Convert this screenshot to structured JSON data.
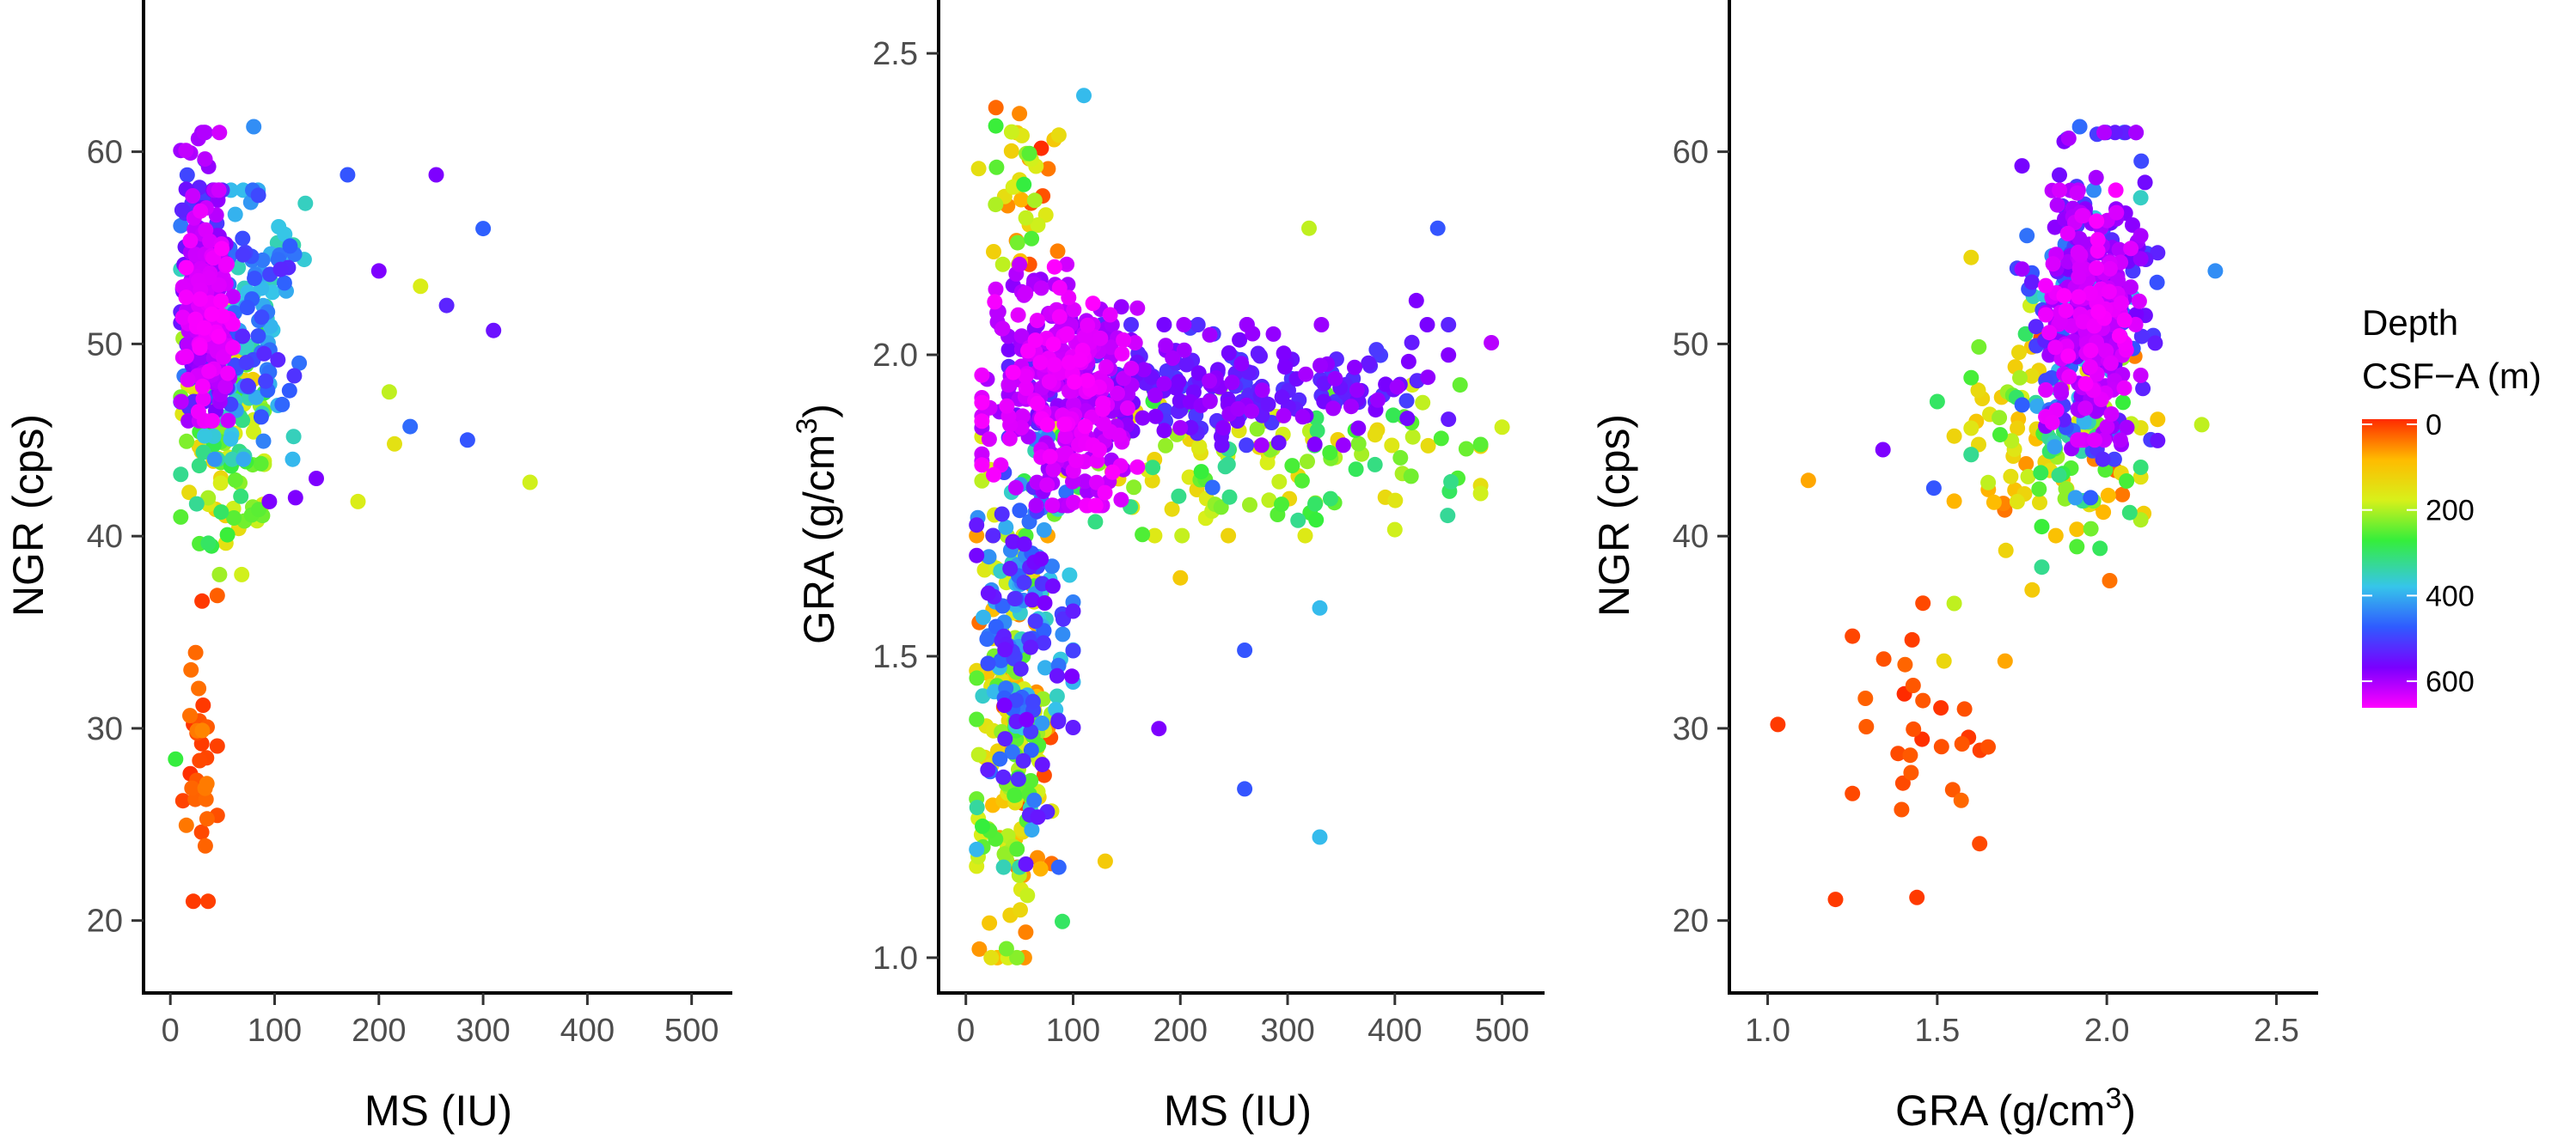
{
  "figure": {
    "type": "scatter_panels",
    "colors": {
      "background": "#ffffff",
      "axis": "#000000",
      "tick_text": "#4d4d4d",
      "gradient": [
        "#ff00ff",
        "#7a00ff",
        "#2f5bff",
        "#36c5ea",
        "#35ee3b",
        "#d8f01a",
        "#ffbb00",
        "#ff2a00"
      ]
    }
  },
  "legend": {
    "title_line1": "Depth",
    "title_line2": "CSF−A (m)",
    "labels": [
      "0",
      "200",
      "400",
      "600"
    ],
    "min": 0,
    "max": 650
  },
  "chart_data": [
    {
      "type": "scatter",
      "id": "ngr_vs_ms",
      "title": "",
      "xlabel": "MS (IU)",
      "ylabel": "NGR (cps)",
      "xlim": [
        -15,
        525
      ],
      "ylim": [
        16.5,
        67
      ],
      "xticks": [
        0,
        100,
        200,
        300,
        400,
        500
      ],
      "yticks": [
        20,
        30,
        40,
        50,
        60
      ],
      "xtick_labels": [
        "0",
        "100",
        "200",
        "300",
        "400",
        "500"
      ],
      "ytick_labels": [
        "20",
        "30",
        "40",
        "50",
        "60"
      ],
      "color_by": "depth_m",
      "clusters": [
        {
          "depth": [
            560,
            650
          ],
          "x": [
            12,
            60
          ],
          "y": [
            46,
            58
          ],
          "n": 180
        },
        {
          "depth": [
            480,
            620
          ],
          "x": [
            10,
            50
          ],
          "y": [
            47,
            61
          ],
          "n": 90
        },
        {
          "depth": [
            330,
            520
          ],
          "x": [
            10,
            130
          ],
          "y": [
            44,
            58
          ],
          "n": 160
        },
        {
          "depth": [
            120,
            330
          ],
          "x": [
            10,
            90
          ],
          "y": [
            38,
            52
          ],
          "n": 110
        },
        {
          "depth": [
            0,
            60
          ],
          "x": [
            12,
            45
          ],
          "y": [
            21,
            37
          ],
          "n": 30
        }
      ],
      "points": [
        {
          "x": 80,
          "y": 61.3,
          "depth": 420
        },
        {
          "x": 170,
          "y": 58.8,
          "depth": 470
        },
        {
          "x": 255,
          "y": 58.8,
          "depth": 560
        },
        {
          "x": 300,
          "y": 56.0,
          "depth": 460
        },
        {
          "x": 345,
          "y": 42.8,
          "depth": 190
        },
        {
          "x": 285,
          "y": 45.0,
          "depth": 470
        },
        {
          "x": 230,
          "y": 45.7,
          "depth": 450
        },
        {
          "x": 215,
          "y": 44.8,
          "depth": 160
        },
        {
          "x": 180,
          "y": 41.8,
          "depth": 180
        },
        {
          "x": 310,
          "y": 50.7,
          "depth": 540
        },
        {
          "x": 265,
          "y": 52.0,
          "depth": 520
        },
        {
          "x": 120,
          "y": 42.0,
          "depth": 560
        },
        {
          "x": 140,
          "y": 43.0,
          "depth": 560
        },
        {
          "x": 95,
          "y": 41.8,
          "depth": 560
        },
        {
          "x": 5,
          "y": 28.4,
          "depth": 280
        },
        {
          "x": 22,
          "y": 21.0,
          "depth": 10
        },
        {
          "x": 30,
          "y": 24.6,
          "depth": 20
        },
        {
          "x": 200,
          "y": 53.8,
          "depth": 560
        },
        {
          "x": 240,
          "y": 53.0,
          "depth": 180
        },
        {
          "x": 210,
          "y": 47.5,
          "depth": 200
        }
      ]
    },
    {
      "type": "scatter",
      "id": "gra_vs_ms",
      "title": "",
      "xlabel": "MS (IU)",
      "ylabel": "GRA (g/cm³)",
      "ylabel_parts": [
        "GRA (g/cm",
        "3",
        ")"
      ],
      "xlim": [
        -15,
        530
      ],
      "ylim": [
        0.95,
        2.56
      ],
      "xticks": [
        0,
        100,
        200,
        300,
        400,
        500
      ],
      "yticks": [
        1.0,
        1.5,
        2.0,
        2.5
      ],
      "xtick_labels": [
        "0",
        "100",
        "200",
        "300",
        "400",
        "500"
      ],
      "ytick_labels": [
        "1.0",
        "1.5",
        "2.0",
        "2.5"
      ],
      "color_by": "depth_m",
      "clusters": [
        {
          "depth": [
            570,
            650
          ],
          "x": [
            15,
            160
          ],
          "y": [
            1.75,
            2.15
          ],
          "n": 320
        },
        {
          "depth": [
            490,
            590
          ],
          "x": [
            40,
            450
          ],
          "y": [
            1.85,
            2.05
          ],
          "n": 220
        },
        {
          "depth": [
            330,
            560
          ],
          "x": [
            10,
            100
          ],
          "y": [
            1.15,
            1.9
          ],
          "n": 160
        },
        {
          "depth": [
            130,
            330
          ],
          "x": [
            15,
            480
          ],
          "y": [
            1.7,
            1.95
          ],
          "n": 150
        },
        {
          "depth": [
            20,
            280
          ],
          "x": [
            10,
            80
          ],
          "y": [
            1.0,
            1.7
          ],
          "n": 180
        },
        {
          "depth": [
            0,
            300
          ],
          "x": [
            10,
            90
          ],
          "y": [
            2.15,
            2.42
          ],
          "n": 40
        }
      ],
      "points": [
        {
          "x": 110,
          "y": 2.43,
          "depth": 380
        },
        {
          "x": 28,
          "y": 2.41,
          "depth": 40
        },
        {
          "x": 50,
          "y": 2.4,
          "depth": 60
        },
        {
          "x": 320,
          "y": 2.21,
          "depth": 200
        },
        {
          "x": 440,
          "y": 2.21,
          "depth": 470
        },
        {
          "x": 330,
          "y": 1.58,
          "depth": 380
        },
        {
          "x": 260,
          "y": 1.51,
          "depth": 470
        },
        {
          "x": 260,
          "y": 1.28,
          "depth": 470
        },
        {
          "x": 330,
          "y": 1.2,
          "depth": 380
        },
        {
          "x": 130,
          "y": 1.16,
          "depth": 120
        },
        {
          "x": 90,
          "y": 1.06,
          "depth": 300
        },
        {
          "x": 500,
          "y": 1.88,
          "depth": 190
        },
        {
          "x": 480,
          "y": 1.77,
          "depth": 190
        },
        {
          "x": 400,
          "y": 1.71,
          "depth": 190
        },
        {
          "x": 180,
          "y": 1.38,
          "depth": 560
        },
        {
          "x": 200,
          "y": 1.63,
          "depth": 120
        },
        {
          "x": 420,
          "y": 2.09,
          "depth": 560
        },
        {
          "x": 490,
          "y": 2.02,
          "depth": 600
        },
        {
          "x": 230,
          "y": 1.78,
          "depth": 450
        }
      ]
    },
    {
      "type": "scatter",
      "id": "ngr_vs_gra",
      "title": "",
      "xlabel": "GRA (g/cm³)",
      "xlabel_parts": [
        "GRA (g/cm",
        "3",
        ")"
      ],
      "ylabel": "NGR (cps)",
      "xlim": [
        0.92,
        2.58
      ],
      "ylim": [
        16.5,
        67
      ],
      "xticks": [
        1.0,
        1.5,
        2.0,
        2.5
      ],
      "yticks": [
        20,
        30,
        40,
        50,
        60
      ],
      "xtick_labels": [
        "1.0",
        "1.5",
        "2.0",
        "2.5"
      ],
      "ytick_labels": [
        "20",
        "30",
        "40",
        "50",
        "60"
      ],
      "color_by": "depth_m",
      "clusters": [
        {
          "depth": [
            570,
            650
          ],
          "x": [
            1.82,
            2.1
          ],
          "y": [
            45,
            58
          ],
          "n": 220
        },
        {
          "depth": [
            470,
            600
          ],
          "x": [
            1.75,
            2.15
          ],
          "y": [
            44,
            61
          ],
          "n": 130
        },
        {
          "depth": [
            330,
            500
          ],
          "x": [
            1.7,
            2.1
          ],
          "y": [
            42,
            58
          ],
          "n": 80
        },
        {
          "depth": [
            130,
            330
          ],
          "x": [
            1.6,
            2.1
          ],
          "y": [
            38,
            52
          ],
          "n": 90
        },
        {
          "depth": [
            20,
            140
          ],
          "x": [
            1.55,
            2.15
          ],
          "y": [
            36,
            52
          ],
          "n": 40
        },
        {
          "depth": [
            0,
            40
          ],
          "x": [
            1.25,
            1.65
          ],
          "y": [
            24,
            37
          ],
          "n": 28
        }
      ],
      "points": [
        {
          "x": 1.03,
          "y": 30.2,
          "depth": 10
        },
        {
          "x": 1.12,
          "y": 42.9,
          "depth": 80
        },
        {
          "x": 1.2,
          "y": 21.1,
          "depth": 10
        },
        {
          "x": 1.44,
          "y": 21.2,
          "depth": 10
        },
        {
          "x": 2.32,
          "y": 53.8,
          "depth": 420
        },
        {
          "x": 2.28,
          "y": 45.8,
          "depth": 200
        },
        {
          "x": 1.34,
          "y": 44.5,
          "depth": 560
        },
        {
          "x": 1.5,
          "y": 47.0,
          "depth": 300
        },
        {
          "x": 1.49,
          "y": 42.5,
          "depth": 470
        },
        {
          "x": 1.55,
          "y": 36.5,
          "depth": 200
        },
        {
          "x": 1.7,
          "y": 33.5,
          "depth": 80
        },
        {
          "x": 1.78,
          "y": 37.2,
          "depth": 120
        },
        {
          "x": 1.52,
          "y": 33.5,
          "depth": 140
        },
        {
          "x": 1.6,
          "y": 54.5,
          "depth": 140
        },
        {
          "x": 1.92,
          "y": 61.3,
          "depth": 450
        },
        {
          "x": 2.05,
          "y": 61.0,
          "depth": 430
        }
      ]
    }
  ]
}
